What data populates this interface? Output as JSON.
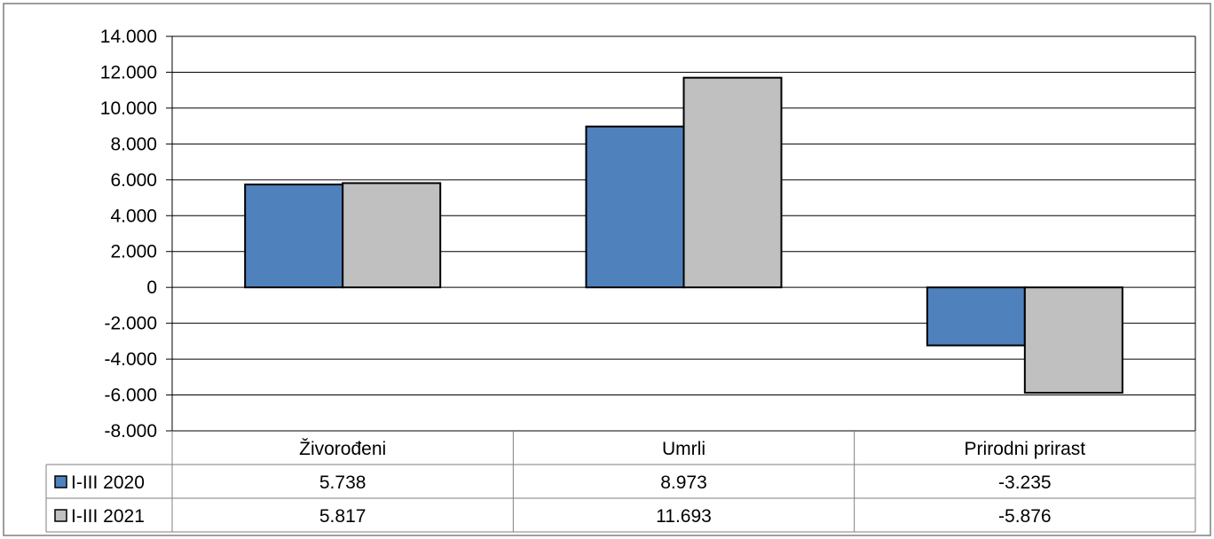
{
  "chart_data": {
    "type": "bar",
    "title": "",
    "xlabel": "",
    "ylabel": "",
    "categories": [
      "Živorođeni",
      "Umrli",
      "Prirodni prirast"
    ],
    "series": [
      {
        "name": "I-III 2020",
        "values": [
          5738,
          8973,
          -3235
        ],
        "labels": [
          "5.738",
          "8.973",
          "-3.235"
        ]
      },
      {
        "name": "I-III 2021",
        "values": [
          5817,
          11693,
          -5876
        ],
        "labels": [
          "5.817",
          "11.693",
          "-5.876"
        ]
      }
    ],
    "ylim": [
      -8000,
      14000
    ],
    "ytick_values": [
      14000,
      12000,
      10000,
      8000,
      6000,
      4000,
      2000,
      0,
      -2000,
      -4000,
      -6000,
      -8000
    ],
    "ytick_labels": [
      "14.000",
      "12.000",
      "10.000",
      "8.000",
      "6.000",
      "4.000",
      "2.000",
      "0",
      "-2.000",
      "-4.000",
      "-6.000",
      "-8.000"
    ],
    "grid": true,
    "legend": "data table below chart",
    "colors": {
      "I-III 2020": "#4f81bd",
      "I-III 2021": "#c0c0c0"
    }
  }
}
